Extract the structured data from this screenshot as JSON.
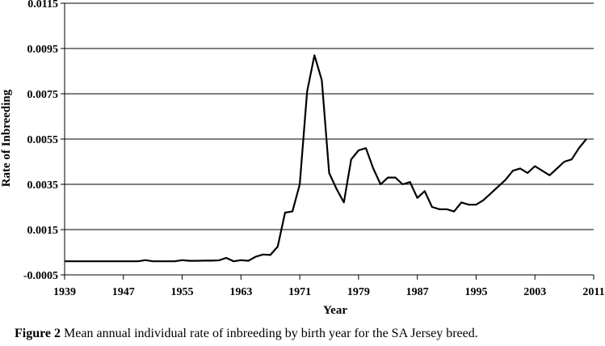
{
  "chart_data": {
    "type": "line",
    "xlabel": "Year",
    "ylabel": "Rate of Inbreeding",
    "xlim": [
      1939,
      2011
    ],
    "ylim": [
      -0.0005,
      0.0115
    ],
    "x_ticks": [
      "1939",
      "1947",
      "1955",
      "1963",
      "1971",
      "1979",
      "1987",
      "1995",
      "2003",
      "2011"
    ],
    "y_ticks": [
      "-0.0005",
      "0.0015",
      "0.0035",
      "0.0055",
      "0.0075",
      "0.0095",
      "0.0115"
    ],
    "grid": "horizontal",
    "series": [
      {
        "color": "#000000",
        "x": [
          1939,
          1940,
          1941,
          1942,
          1943,
          1944,
          1945,
          1946,
          1947,
          1948,
          1949,
          1950,
          1951,
          1952,
          1953,
          1954,
          1955,
          1956,
          1957,
          1958,
          1959,
          1960,
          1961,
          1962,
          1963,
          1964,
          1965,
          1966,
          1967,
          1968,
          1969,
          1970,
          1971,
          1972,
          1973,
          1974,
          1975,
          1976,
          1977,
          1978,
          1979,
          1980,
          1981,
          1982,
          1983,
          1984,
          1985,
          1986,
          1987,
          1988,
          1989,
          1990,
          1991,
          1992,
          1993,
          1994,
          1995,
          1996,
          1997,
          1998,
          1999,
          2000,
          2001,
          2002,
          2003,
          2004,
          2005,
          2006,
          2007,
          2008,
          2009,
          2010
        ],
        "y": [
          0.0001,
          0.0001,
          0.0001,
          0.0001,
          0.0001,
          0.0001,
          0.0001,
          0.0001,
          0.0001,
          0.0001,
          0.0001,
          0.00015,
          0.0001,
          0.0001,
          0.0001,
          0.0001,
          0.00015,
          0.00012,
          0.00012,
          0.00013,
          0.00013,
          0.00014,
          0.00025,
          0.0001,
          0.00015,
          0.00012,
          0.0003,
          0.0004,
          0.00038,
          0.00075,
          0.00225,
          0.0023,
          0.0035,
          0.0076,
          0.0092,
          0.0081,
          0.004,
          0.0033,
          0.0027,
          0.0046,
          0.005,
          0.0051,
          0.0042,
          0.0035,
          0.0038,
          0.0038,
          0.0035,
          0.0036,
          0.0029,
          0.0032,
          0.0025,
          0.0024,
          0.0024,
          0.0023,
          0.0027,
          0.0026,
          0.0026,
          0.0028,
          0.0031,
          0.0034,
          0.0037,
          0.0041,
          0.0042,
          0.004,
          0.0043,
          0.0041,
          0.0039,
          0.0042,
          0.0045,
          0.0046,
          0.0051,
          0.0055
        ]
      }
    ]
  },
  "caption": {
    "label": "Figure 2",
    "text": " Mean annual individual rate of inbreeding by birth year for the SA Jersey breed."
  }
}
